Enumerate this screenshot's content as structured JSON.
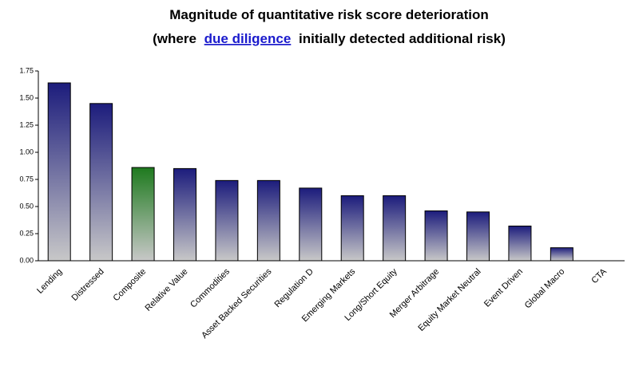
{
  "chart_data": {
    "type": "bar",
    "title": "Magnitude of quantitative risk score deterioration",
    "subtitle": [
      "(where",
      "due diligence",
      "initially detected additional risk)"
    ],
    "categories": [
      "Lending",
      "Distressed",
      "Composite",
      "Relative Value",
      "Commodities",
      "Asset Backed Securities",
      "Regulation D",
      "Emerging Markets",
      "Long/Short Equity",
      "Merger Arbitrage",
      "Equity Market Neutral",
      "Event Driven",
      "Global Macro",
      "CTA"
    ],
    "values": [
      1.64,
      1.45,
      0.86,
      0.85,
      0.74,
      0.74,
      0.67,
      0.6,
      0.6,
      0.46,
      0.45,
      0.32,
      0.12,
      0
    ],
    "colors": [
      "#1c1c7c",
      "#1c1c7c",
      "#1e7a1e",
      "#1c1c7c",
      "#1c1c7c",
      "#1c1c7c",
      "#1c1c7c",
      "#1c1c7c",
      "#1c1c7c",
      "#1c1c7c",
      "#1c1c7c",
      "#1c1c7c",
      "#1c1c7c",
      "#1c1c7c"
    ],
    "gradient_end": "#c8c8c8",
    "ylim": [
      0,
      1.75
    ],
    "yticks": [
      {
        "value": 0,
        "label": "0.00"
      },
      0.25,
      {
        "value": 0.5,
        "label": "0.50"
      },
      0.75,
      {
        "value": 1,
        "label": "1.00"
      },
      1.25,
      {
        "value": 1.5,
        "label": "1.50"
      },
      1.75
    ],
    "grid": false
  }
}
